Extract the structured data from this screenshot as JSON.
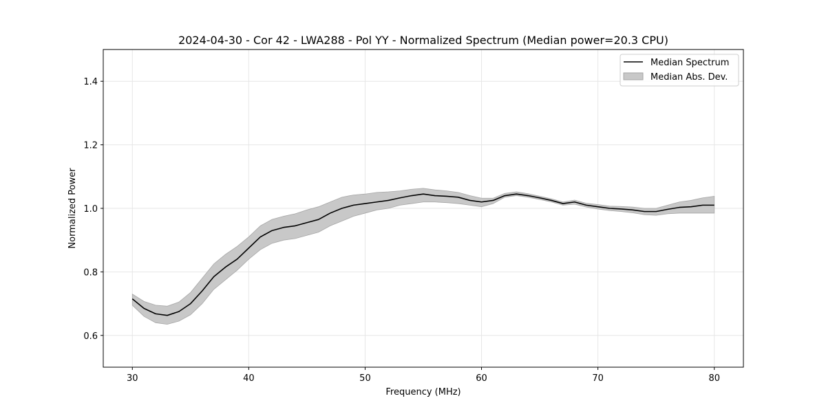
{
  "chart_data": {
    "type": "line",
    "title": "2024-04-30 - Cor 42 - LWA288 - Pol YY - Normalized Spectrum (Median power=20.3 CPU)",
    "xlabel": "Frequency (MHz)",
    "ylabel": "Normalized Power",
    "xlim": [
      27.5,
      82.5
    ],
    "ylim": [
      0.5,
      1.5
    ],
    "xticks": [
      30,
      40,
      50,
      60,
      70,
      80
    ],
    "yticks": [
      0.6,
      0.8,
      1.0,
      1.2,
      1.4
    ],
    "xtick_labels": [
      "30",
      "40",
      "50",
      "60",
      "70",
      "80"
    ],
    "ytick_labels": [
      "0.6",
      "0.8",
      "1.0",
      "1.2",
      "1.4"
    ],
    "grid": true,
    "legend_position": "top-right",
    "legend": [
      "Median Spectrum",
      "Median Abs. Dev."
    ],
    "colors": {
      "line": "#000000",
      "band_fill": "#c8c8c8",
      "band_edge": "#a6a6a6",
      "grid": "#e6e6e6"
    },
    "series": [
      {
        "name": "Median Spectrum",
        "x": [
          30,
          31,
          32,
          33,
          34,
          35,
          36,
          37,
          38,
          39,
          40,
          41,
          42,
          43,
          44,
          45,
          46,
          47,
          48,
          49,
          50,
          51,
          52,
          53,
          54,
          55,
          56,
          57,
          58,
          59,
          60,
          61,
          62,
          63,
          64,
          65,
          66,
          67,
          68,
          69,
          70,
          71,
          72,
          73,
          74,
          75,
          76,
          77,
          78,
          79,
          80
        ],
        "values": [
          0.715,
          0.685,
          0.668,
          0.663,
          0.675,
          0.7,
          0.74,
          0.785,
          0.815,
          0.84,
          0.875,
          0.91,
          0.93,
          0.94,
          0.945,
          0.955,
          0.965,
          0.985,
          1.0,
          1.01,
          1.015,
          1.02,
          1.025,
          1.033,
          1.04,
          1.045,
          1.04,
          1.038,
          1.035,
          1.025,
          1.02,
          1.025,
          1.04,
          1.045,
          1.04,
          1.033,
          1.025,
          1.015,
          1.02,
          1.01,
          1.005,
          1.0,
          0.998,
          0.995,
          0.99,
          0.99,
          0.997,
          1.003,
          1.005,
          1.01,
          1.01
        ]
      },
      {
        "name": "Median Abs. Dev.",
        "x": [
          30,
          31,
          32,
          33,
          34,
          35,
          36,
          37,
          38,
          39,
          40,
          41,
          42,
          43,
          44,
          45,
          46,
          47,
          48,
          49,
          50,
          51,
          52,
          53,
          54,
          55,
          56,
          57,
          58,
          59,
          60,
          61,
          62,
          63,
          64,
          65,
          66,
          67,
          68,
          69,
          70,
          71,
          72,
          73,
          74,
          75,
          76,
          77,
          78,
          79,
          80
        ],
        "lower": [
          0.695,
          0.66,
          0.64,
          0.635,
          0.645,
          0.665,
          0.7,
          0.745,
          0.775,
          0.805,
          0.84,
          0.87,
          0.89,
          0.9,
          0.905,
          0.915,
          0.925,
          0.945,
          0.96,
          0.975,
          0.985,
          0.995,
          1.0,
          1.01,
          1.015,
          1.02,
          1.02,
          1.018,
          1.015,
          1.01,
          1.005,
          1.015,
          1.035,
          1.04,
          1.035,
          1.028,
          1.02,
          1.01,
          1.013,
          1.004,
          0.998,
          0.993,
          0.99,
          0.986,
          0.98,
          0.978,
          0.983,
          0.985,
          0.985,
          0.985,
          0.985
        ],
        "upper": [
          0.73,
          0.707,
          0.695,
          0.692,
          0.705,
          0.735,
          0.78,
          0.825,
          0.855,
          0.88,
          0.91,
          0.945,
          0.965,
          0.975,
          0.983,
          0.995,
          1.005,
          1.02,
          1.035,
          1.042,
          1.045,
          1.05,
          1.052,
          1.055,
          1.06,
          1.063,
          1.058,
          1.055,
          1.05,
          1.04,
          1.032,
          1.032,
          1.047,
          1.052,
          1.046,
          1.038,
          1.03,
          1.02,
          1.026,
          1.016,
          1.012,
          1.007,
          1.006,
          1.004,
          1.0,
          1.0,
          1.01,
          1.02,
          1.025,
          1.033,
          1.038
        ]
      }
    ]
  }
}
